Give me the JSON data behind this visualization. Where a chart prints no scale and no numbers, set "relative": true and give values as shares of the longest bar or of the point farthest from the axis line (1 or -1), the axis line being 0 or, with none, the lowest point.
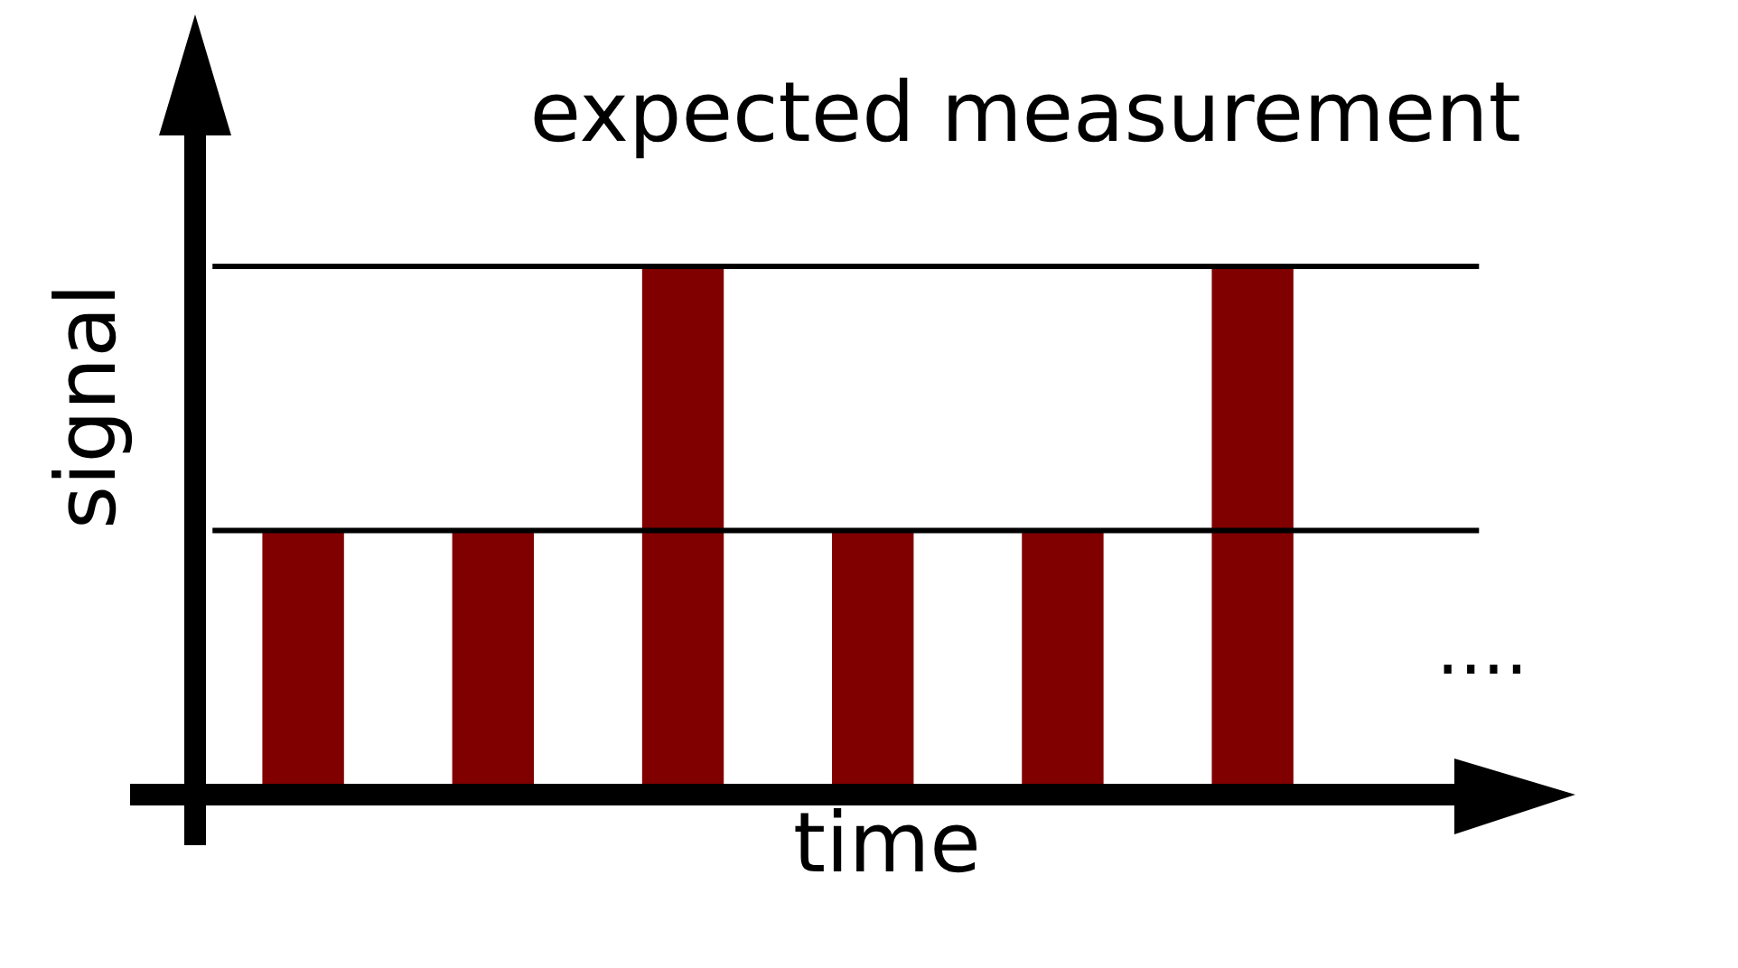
{
  "chart_data": {
    "type": "bar",
    "title": "expected measurement",
    "xlabel": "time",
    "ylabel": "signal",
    "categories": [
      null,
      null,
      null,
      null,
      null,
      null
    ],
    "values": [
      0.5,
      0.5,
      1,
      0.5,
      0.5,
      1
    ],
    "color": "#800000",
    "relative": true,
    "ref_lines": [
      {
        "axis": "y",
        "value": 0.5,
        "color": "#000000"
      },
      {
        "axis": "y",
        "value": 1,
        "color": "#000000"
      }
    ],
    "annotations": [
      "...."
    ]
  }
}
